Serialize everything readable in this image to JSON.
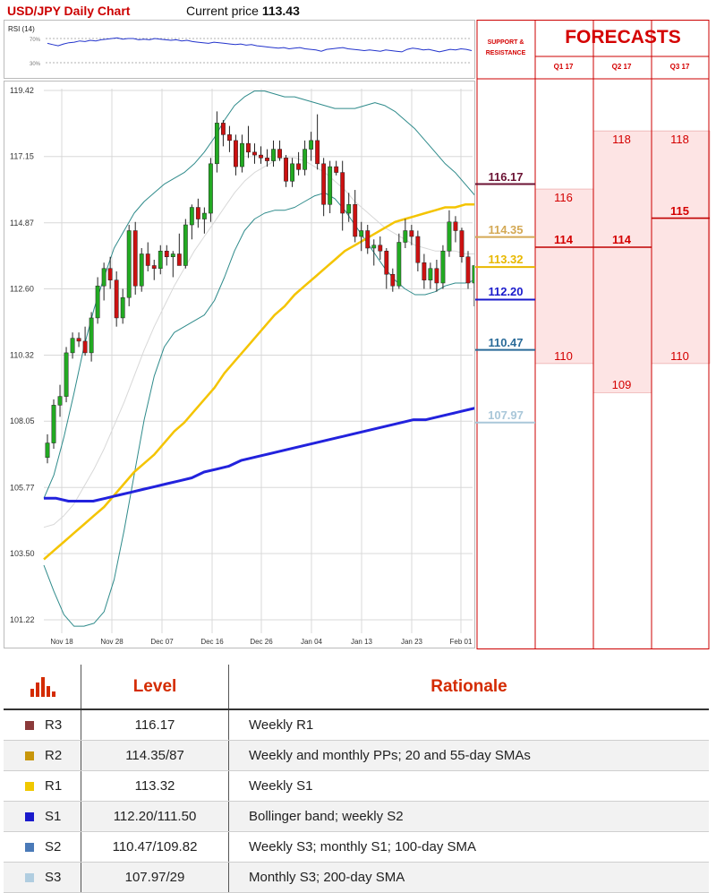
{
  "header": {
    "title": "USD/JPY Daily Chart",
    "price_label": "Current price",
    "price_value": "113.43"
  },
  "rsi": {
    "label": "RSI (14)",
    "tick_labels": [
      "70%",
      "30%"
    ],
    "values": [
      62,
      60,
      58,
      61,
      63,
      64,
      66,
      65,
      67,
      66,
      68,
      69,
      70,
      71,
      69,
      70,
      70,
      68,
      69,
      68,
      70,
      69,
      68,
      67,
      68,
      66,
      67,
      65,
      64,
      63,
      62,
      64,
      63,
      62,
      61,
      60,
      61,
      59,
      60,
      58,
      57,
      56,
      55,
      54,
      55,
      53,
      54,
      55,
      53,
      52,
      51,
      49,
      52,
      53,
      54,
      55,
      53,
      52,
      51,
      50,
      51,
      50,
      49,
      51,
      50,
      49,
      48,
      52,
      54,
      53,
      51,
      52,
      50,
      48,
      50,
      52,
      51,
      53,
      52,
      50
    ]
  },
  "chart_data": {
    "type": "candlestick",
    "y_ticks": [
      "119.42",
      "117.15",
      "114.87",
      "112.60",
      "110.32",
      "108.05",
      "105.77",
      "103.50",
      "101.22"
    ],
    "ylim": [
      100.8,
      119.8
    ],
    "x_ticks": [
      "Nov 18",
      "Nov 28",
      "Dec 07",
      "Dec 16",
      "Dec 26",
      "Jan 04",
      "Jan 13",
      "Jan 23",
      "Feb 01"
    ],
    "candles": [
      [
        106.8,
        107.6,
        106.6,
        107.3
      ],
      [
        107.3,
        108.8,
        107.1,
        108.6
      ],
      [
        108.6,
        109.3,
        108.2,
        108.9
      ],
      [
        108.9,
        110.6,
        108.7,
        110.4
      ],
      [
        110.4,
        111.1,
        110.2,
        110.9
      ],
      [
        110.9,
        111.1,
        110.6,
        110.8
      ],
      [
        110.8,
        111.3,
        110.3,
        110.4
      ],
      [
        110.4,
        111.8,
        110.1,
        111.6
      ],
      [
        111.6,
        113.0,
        111.4,
        112.7
      ],
      [
        112.7,
        113.5,
        112.2,
        113.3
      ],
      [
        113.3,
        113.7,
        112.6,
        112.9
      ],
      [
        112.9,
        113.2,
        111.3,
        111.6
      ],
      [
        111.6,
        112.6,
        111.4,
        112.3
      ],
      [
        112.3,
        114.8,
        112.0,
        114.6
      ],
      [
        114.6,
        114.9,
        112.4,
        112.7
      ],
      [
        112.7,
        114.0,
        112.5,
        113.8
      ],
      [
        113.8,
        114.2,
        113.2,
        113.4
      ],
      [
        113.4,
        113.6,
        112.9,
        113.3
      ],
      [
        113.3,
        114.1,
        113.1,
        113.9
      ],
      [
        113.9,
        114.1,
        113.4,
        113.7
      ],
      [
        113.7,
        113.9,
        113.0,
        113.8
      ],
      [
        113.8,
        114.5,
        113.4,
        113.4
      ],
      [
        113.4,
        115.0,
        113.3,
        114.8
      ],
      [
        114.8,
        115.5,
        114.3,
        115.4
      ],
      [
        115.4,
        115.7,
        114.7,
        115.0
      ],
      [
        115.0,
        115.4,
        114.5,
        115.2
      ],
      [
        115.2,
        117.1,
        114.9,
        116.9
      ],
      [
        116.9,
        118.7,
        116.6,
        118.3
      ],
      [
        118.3,
        118.4,
        117.5,
        117.9
      ],
      [
        117.9,
        118.2,
        117.3,
        117.7
      ],
      [
        117.7,
        117.9,
        116.5,
        116.8
      ],
      [
        116.8,
        117.9,
        116.6,
        117.6
      ],
      [
        117.6,
        118.2,
        117.1,
        117.3
      ],
      [
        117.3,
        117.6,
        116.9,
        117.2
      ],
      [
        117.2,
        117.5,
        116.9,
        117.1
      ],
      [
        117.1,
        117.4,
        116.8,
        117.0
      ],
      [
        117.0,
        117.7,
        116.8,
        117.4
      ],
      [
        117.4,
        117.7,
        117.0,
        117.1
      ],
      [
        117.1,
        117.2,
        116.1,
        116.3
      ],
      [
        116.3,
        117.1,
        116.1,
        116.9
      ],
      [
        116.9,
        117.3,
        116.5,
        116.7
      ],
      [
        116.7,
        117.7,
        116.5,
        117.4
      ],
      [
        117.4,
        118.0,
        117.0,
        117.7
      ],
      [
        117.7,
        118.6,
        116.7,
        116.9
      ],
      [
        116.9,
        117.1,
        115.1,
        115.5
      ],
      [
        115.5,
        117.0,
        115.2,
        116.8
      ],
      [
        116.8,
        117.0,
        116.5,
        116.6
      ],
      [
        116.6,
        117.0,
        114.6,
        115.2
      ],
      [
        115.2,
        115.9,
        114.9,
        115.5
      ],
      [
        115.5,
        116.0,
        114.2,
        114.4
      ],
      [
        114.4,
        114.9,
        113.9,
        114.6
      ],
      [
        114.6,
        114.8,
        113.8,
        114.0
      ],
      [
        114.0,
        114.3,
        113.4,
        114.1
      ],
      [
        114.1,
        114.4,
        113.6,
        113.9
      ],
      [
        113.9,
        114.0,
        112.6,
        113.1
      ],
      [
        113.1,
        113.3,
        112.5,
        112.7
      ],
      [
        112.7,
        114.5,
        112.6,
        114.2
      ],
      [
        114.2,
        115.0,
        114.0,
        114.6
      ],
      [
        114.6,
        114.8,
        114.1,
        114.4
      ],
      [
        114.4,
        114.6,
        113.2,
        113.5
      ],
      [
        113.5,
        113.8,
        112.6,
        112.9
      ],
      [
        112.9,
        113.5,
        112.6,
        113.3
      ],
      [
        113.3,
        113.6,
        112.5,
        112.8
      ],
      [
        112.8,
        114.1,
        112.6,
        113.9
      ],
      [
        113.9,
        115.3,
        113.7,
        114.9
      ],
      [
        114.9,
        115.1,
        114.2,
        114.6
      ],
      [
        114.6,
        114.7,
        113.5,
        113.7
      ],
      [
        113.7,
        113.9,
        112.6,
        112.8
      ],
      [
        112.8,
        113.4,
        112.0,
        113.4
      ]
    ],
    "sma55": [
      103.3,
      103.6,
      103.9,
      104.2,
      104.5,
      104.8,
      105.1,
      105.5,
      105.9,
      106.3,
      106.6,
      106.9,
      107.3,
      107.7,
      108.0,
      108.4,
      108.8,
      109.2,
      109.7,
      110.1,
      110.5,
      110.9,
      111.3,
      111.7,
      112.0,
      112.4,
      112.7,
      113.0,
      113.3,
      113.6,
      113.9,
      114.1,
      114.3,
      114.5,
      114.7,
      114.9,
      115.0,
      115.1,
      115.2,
      115.3,
      115.4,
      115.4,
      115.5,
      115.5
    ],
    "sma200": [
      105.4,
      105.4,
      105.3,
      105.3,
      105.3,
      105.4,
      105.5,
      105.6,
      105.7,
      105.8,
      105.9,
      106.0,
      106.1,
      106.3,
      106.4,
      106.5,
      106.7,
      106.8,
      106.9,
      107.0,
      107.1,
      107.2,
      107.3,
      107.4,
      107.5,
      107.6,
      107.7,
      107.8,
      107.9,
      108.0,
      108.1,
      108.1,
      108.2,
      108.3,
      108.4,
      108.5
    ],
    "bb_upper": [
      105.4,
      106.2,
      107.5,
      109.0,
      110.6,
      111.9,
      113.0,
      114.0,
      114.6,
      115.2,
      115.6,
      115.9,
      116.2,
      116.4,
      116.6,
      116.9,
      117.3,
      117.8,
      118.4,
      118.9,
      119.2,
      119.4,
      119.4,
      119.3,
      119.2,
      119.2,
      119.1,
      119.0,
      118.9,
      118.8,
      118.8,
      118.8,
      118.9,
      119.0,
      118.9,
      118.7,
      118.4,
      118.1,
      117.7,
      117.3,
      116.9,
      116.6,
      116.2,
      115.8
    ],
    "bb_lower": [
      103.1,
      102.2,
      101.4,
      101.0,
      101.0,
      101.1,
      101.5,
      102.6,
      104.3,
      106.2,
      108.1,
      109.6,
      110.6,
      111.1,
      111.3,
      111.5,
      111.7,
      112.2,
      113.0,
      113.9,
      114.6,
      115.0,
      115.2,
      115.3,
      115.3,
      115.4,
      115.6,
      115.8,
      115.9,
      115.7,
      115.3,
      114.8,
      114.3,
      113.8,
      113.3,
      112.9,
      112.6,
      112.4,
      112.4,
      112.5,
      112.7,
      112.8,
      112.8,
      112.9
    ],
    "bb_mid": [
      104.4,
      104.5,
      104.8,
      105.2,
      105.8,
      106.4,
      107.1,
      107.9,
      108.7,
      109.6,
      110.5,
      111.3,
      112.0,
      112.7,
      113.3,
      113.9,
      114.4,
      114.9,
      115.4,
      115.9,
      116.3,
      116.6,
      116.8,
      117.0,
      117.1,
      117.1,
      117.0,
      116.8,
      116.6,
      116.3,
      116.0,
      115.6,
      115.3,
      115.0,
      114.7,
      114.5,
      114.3,
      114.1,
      114.0,
      113.9,
      113.9,
      113.9,
      113.8,
      113.8
    ]
  },
  "support_resistance": {
    "header": "SUPPORT & RESISTANCE",
    "levels": [
      {
        "label": "116.17",
        "value": 116.17,
        "color": "#6b1233"
      },
      {
        "label": "114.35",
        "value": 114.35,
        "color": "#d4a955"
      },
      {
        "label": "113.32",
        "value": 113.32,
        "color": "#e8b800"
      },
      {
        "label": "112.20",
        "value": 112.2,
        "color": "#1a1acc"
      },
      {
        "label": "110.47",
        "value": 110.47,
        "color": "#2a6b99"
      },
      {
        "label": "107.97",
        "value": 107.97,
        "color": "#a9c7d9"
      }
    ]
  },
  "forecasts": {
    "header": "FORECASTS",
    "columns": [
      {
        "label": "Q1 17",
        "high": "116",
        "mid": "114",
        "low": "110",
        "high_v": 116,
        "mid_v": 114,
        "low_v": 110
      },
      {
        "label": "Q2 17",
        "high": "118",
        "mid": "114",
        "low": "109",
        "high_v": 118,
        "mid_v": 114,
        "low_v": 109
      },
      {
        "label": "Q3 17",
        "high": "118",
        "mid": "115",
        "low": "110",
        "high_v": 118,
        "mid_v": 115,
        "low_v": 110
      }
    ]
  },
  "legend": {
    "header_level": "Level",
    "header_rationale": "Rationale",
    "rows": [
      {
        "name": "R3",
        "level": "116.17",
        "rationale": "Weekly R1",
        "color": "#8b3a3a"
      },
      {
        "name": "R2",
        "level": "114.35/87",
        "rationale": "Weekly and monthly PPs; 20 and 55-day SMAs",
        "color": "#c8960a"
      },
      {
        "name": "R1",
        "level": "113.32",
        "rationale": "Weekly S1",
        "color": "#f0c800"
      },
      {
        "name": "S1",
        "level": "112.20/111.50",
        "rationale": "Bollinger band; weekly S2",
        "color": "#1a1acc"
      },
      {
        "name": "S2",
        "level": "110.47/109.82",
        "rationale": "Weekly S3; monthly S1; 100-day SMA",
        "color": "#4a7ab8"
      },
      {
        "name": "S3",
        "level": "107.97/29",
        "rationale": "Monthly S3; 200-day SMA",
        "color": "#b0cde0"
      }
    ]
  },
  "colors": {
    "up": "#22aa22",
    "down": "#cc1111",
    "sma55": "#f4c400",
    "sma200": "#2222dd",
    "bb": "#2f8b8b",
    "bb_mid": "#d8d8d8",
    "forecast_fill": "#fde4e4",
    "accent": "#d40000"
  }
}
